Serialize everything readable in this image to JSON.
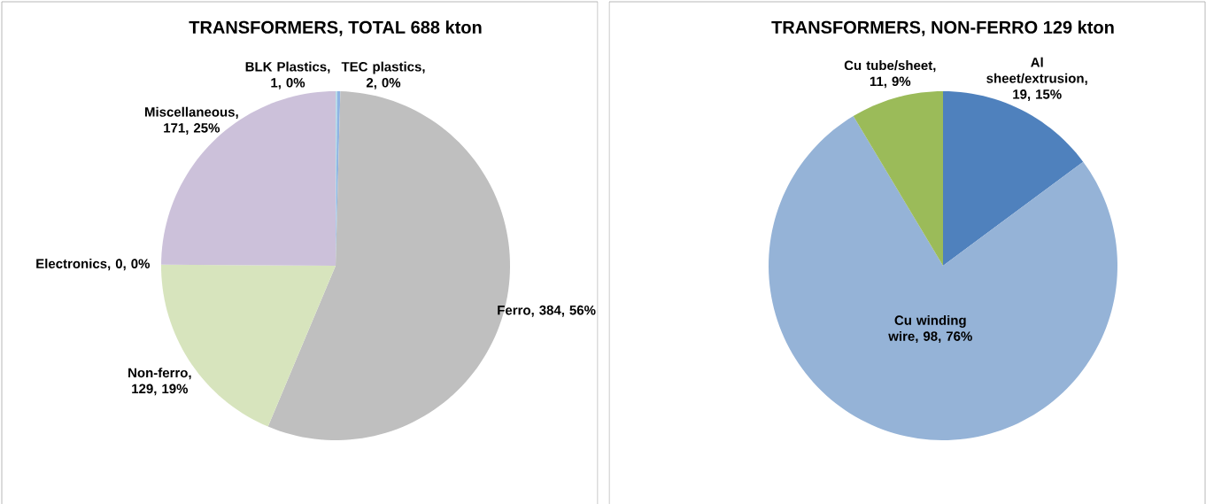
{
  "chart_data": [
    {
      "type": "pie",
      "title": "TRANSFORMERS, TOTAL 688 kton",
      "categories": [
        "BLK Plastics",
        "TEC plastics",
        "Ferro",
        "Non-ferro",
        "Electronics",
        "Miscellaneous"
      ],
      "values": [
        1,
        2,
        384,
        129,
        0,
        171
      ],
      "value_labels": [
        ", 1, 0%",
        ", 2, 0%",
        ", 384, 56%",
        ", 129, 19%",
        ", 0, 0%",
        ", 171, 25%"
      ],
      "colors": [
        "#b7dee8",
        "#8eb4e3",
        "#bfbfbf",
        "#d7e4bd",
        "#fcd5b5",
        "#ccc1da"
      ]
    },
    {
      "type": "pie",
      "title": "TRANSFORMERS, NON-FERRO 129 kton",
      "categories": [
        "Al sheet/extrusion",
        "Cu winding wire",
        "Cu tube/sheet"
      ],
      "values": [
        19,
        98,
        11
      ],
      "value_labels": [
        ", 19, 15%",
        ", 98, 76%",
        ", 11, 9%"
      ],
      "colors": [
        "#4f81bd",
        "#95b3d7",
        "#9bbb59"
      ]
    }
  ]
}
